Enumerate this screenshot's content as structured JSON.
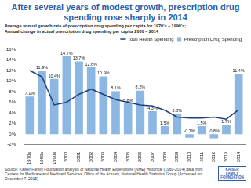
{
  "chart_data": {
    "type": "bar",
    "title": "After several years of modest growth, prescription drug spending rose sharply in 2014",
    "subtitle": [
      "Average annual growth rate of prescription drug spending per capita for 1970’s – 1990’s;",
      "Annual change in actual prescription drug spending per capita 2000 – 2014"
    ],
    "categories": [
      "1970s",
      "1980s",
      "1990s",
      "2000",
      "2001",
      "2002",
      "2003",
      "2004",
      "2005",
      "2006",
      "2007",
      "2008",
      "2009",
      "2010",
      "2011",
      "2012",
      "2013",
      "2014"
    ],
    "series": [
      {
        "name": "Prescription Drug Spending",
        "type": "bar",
        "color": "#8db7e3",
        "values": [
          7.1,
          11.9,
          10.4,
          14.7,
          13.7,
          12.6,
          10.9,
          8.1,
          5.8,
          8.2,
          4.3,
          1.5,
          3.8,
          -0.7,
          1.5,
          -0.8,
          1.7,
          11.4
        ],
        "value_labels": [
          "7.1%",
          "11.9%",
          "10.4%",
          "14.7%",
          "13.7%",
          "12.6%",
          "10.9%",
          "8.1%",
          "5.8%",
          "8.2%",
          "4.3%",
          "1.5%",
          "3.8%",
          "-0.7%",
          "1.5%",
          "-0.8%",
          "1.7%",
          "11.4%"
        ]
      },
      {
        "name": "Total Health Spending",
        "type": "line",
        "color": "#1f3f7a",
        "values": [
          12.0,
          10.8,
          5.5,
          6.0,
          7.5,
          8.5,
          7.5,
          6.5,
          6.0,
          5.5,
          5.3,
          4.5,
          3.2,
          3.0,
          3.0,
          3.2,
          2.8,
          4.6
        ]
      }
    ],
    "ylim": [
      -2,
      16
    ],
    "yticks": [
      {
        "value": -2,
        "label": "-2%"
      },
      {
        "value": 0,
        "label": "0%"
      },
      {
        "value": 2,
        "label": "2%"
      },
      {
        "value": 4,
        "label": "4%"
      },
      {
        "value": 6,
        "label": "6%"
      },
      {
        "value": 8,
        "label": "8%"
      },
      {
        "value": 10,
        "label": "10%"
      },
      {
        "value": 12,
        "label": "12%"
      },
      {
        "value": 14,
        "label": "14%"
      },
      {
        "value": 16,
        "label": "16%"
      }
    ],
    "grid": false,
    "legend": "top-right",
    "data_labels": true
  },
  "source": "Source: Kaiser Family Foundation analysis of National Health Expenditure (NHE) Historical (1960-2014) data from Centers for Medicare and Medicaid Services, Office of the Actuary, National Health Statistics Group (Accessed on December 7, 2015)",
  "logo": "KAISER FAMILY FOUNDATION"
}
